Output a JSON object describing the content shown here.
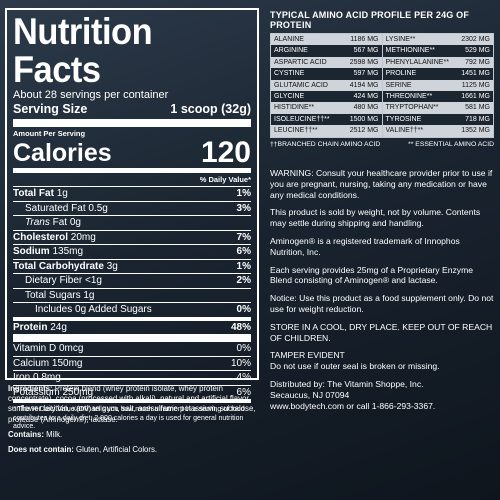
{
  "nutrition": {
    "title": "Nutrition Facts",
    "servings": "About 28 servings per container",
    "serving_size_label": "Serving Size",
    "serving_size_value": "1 scoop (32g)",
    "amount_per_serving": "Amount Per Serving",
    "calories_label": "Calories",
    "calories_value": "120",
    "dv_header": "% Daily Value*",
    "rows": [
      {
        "label": "Total Fat",
        "amount": "1g",
        "pct": "1%"
      },
      {
        "label": "Saturated Fat",
        "amount": "0.5g",
        "pct": "3%"
      },
      {
        "label": "Trans",
        "amount": "Fat 0g",
        "pct": ""
      },
      {
        "label": "Cholesterol",
        "amount": "20mg",
        "pct": "7%"
      },
      {
        "label": "Sodium",
        "amount": "135mg",
        "pct": "6%"
      },
      {
        "label": "Total Carbohydrate",
        "amount": "3g",
        "pct": "1%"
      },
      {
        "label": "Dietary Fiber",
        "amount": "<1g",
        "pct": "2%"
      },
      {
        "label": "Total Sugars",
        "amount": "1g",
        "pct": ""
      },
      {
        "label": "Includes 0g Added Sugars",
        "amount": "",
        "pct": "0%"
      },
      {
        "label": "Protein",
        "amount": "24g",
        "pct": "48%"
      },
      {
        "label": "Vitamin D",
        "amount": "0mcg",
        "pct": "0%"
      },
      {
        "label": "Calcium",
        "amount": "150mg",
        "pct": "10%"
      },
      {
        "label": "Iron",
        "amount": "0.8mg",
        "pct": "4%"
      },
      {
        "label": "Potassium",
        "amount": "250mg",
        "pct": "6%"
      }
    ],
    "footnote": "* The % Daily Value (DV) tells you how much a nutrient in a serving of food contributes to a daily diet. 2,000 calories a day is used for general nutrition advice."
  },
  "ingredients": {
    "label": "Ingredients:",
    "text": "Protein blend (whey protein isolate, whey protein concentrate), cocoa (processed with alkali), natural and artificial flavor, sunflower lecithin, xanthan gum, salt, acesulfame potassium, sucralose, protease (Aminogen®), lactase.",
    "contains_label": "Contains:",
    "contains_text": "Milk.",
    "not_contain_label": "Does not contain:",
    "not_contain_text": "Gluten, Artificial Colors."
  },
  "amino": {
    "title": "TYPICAL AMINO ACID PROFILE PER 24G OF PROTEIN",
    "left": [
      {
        "name": "Alanine",
        "val": "1186 mg"
      },
      {
        "name": "Arginine",
        "val": "567 mg"
      },
      {
        "name": "Aspartic Acid",
        "val": "2598 mg"
      },
      {
        "name": "Cystine",
        "val": "597 mg"
      },
      {
        "name": "Glutamic Acid",
        "val": "4194 mg"
      },
      {
        "name": "Glycine",
        "val": "424 mg"
      },
      {
        "name": "Histidine**",
        "val": "480 mg"
      },
      {
        "name": "Isoleucine††**",
        "val": "1500 mg"
      },
      {
        "name": "Leucine††**",
        "val": "2512 mg"
      }
    ],
    "right": [
      {
        "name": "Lysine**",
        "val": "2302 mg"
      },
      {
        "name": "Methionine**",
        "val": "529 mg"
      },
      {
        "name": "Phenylalanine**",
        "val": "792 mg"
      },
      {
        "name": "Proline",
        "val": "1451 mg"
      },
      {
        "name": "Serine",
        "val": "1125 mg"
      },
      {
        "name": "Threonine**",
        "val": "1661 mg"
      },
      {
        "name": "Tryptophan**",
        "val": "581 mg"
      },
      {
        "name": "Tyrosine",
        "val": "718 mg"
      },
      {
        "name": "Valine††**",
        "val": "1352 mg"
      }
    ],
    "foot_left": "††Branched Chain Amino Acid",
    "foot_right": "** Essential Amino Acid"
  },
  "info": {
    "warning": "WARNING: Consult your healthcare provider prior to use if you are pregnant, nursing, taking any medication or have any medical conditions.",
    "weight": "This product is sold by weight, not by volume. Contents may settle during shipping and handling.",
    "trademark": "Aminogen® is a registered trademark of Innophos Nutrition, Inc.",
    "enzyme": "Each serving provides 25mg of a Proprietary Enzyme Blend consisting of Aminogen® and lactase.",
    "notice": "Notice: Use this product as a food supplement only. Do not use for weight reduction.",
    "store": "STORE IN A COOL, DRY PLACE. KEEP OUT OF REACH OF CHILDREN.",
    "tamper1": "TAMPER EVIDENT",
    "tamper2": "Do not use if outer seal is broken or missing.",
    "dist1": "Distributed by: The Vitamin Shoppe, Inc.",
    "dist2": "Secaucus, NJ 07094",
    "dist3": "www.bodytech.com or call 1-866-293-3367."
  }
}
